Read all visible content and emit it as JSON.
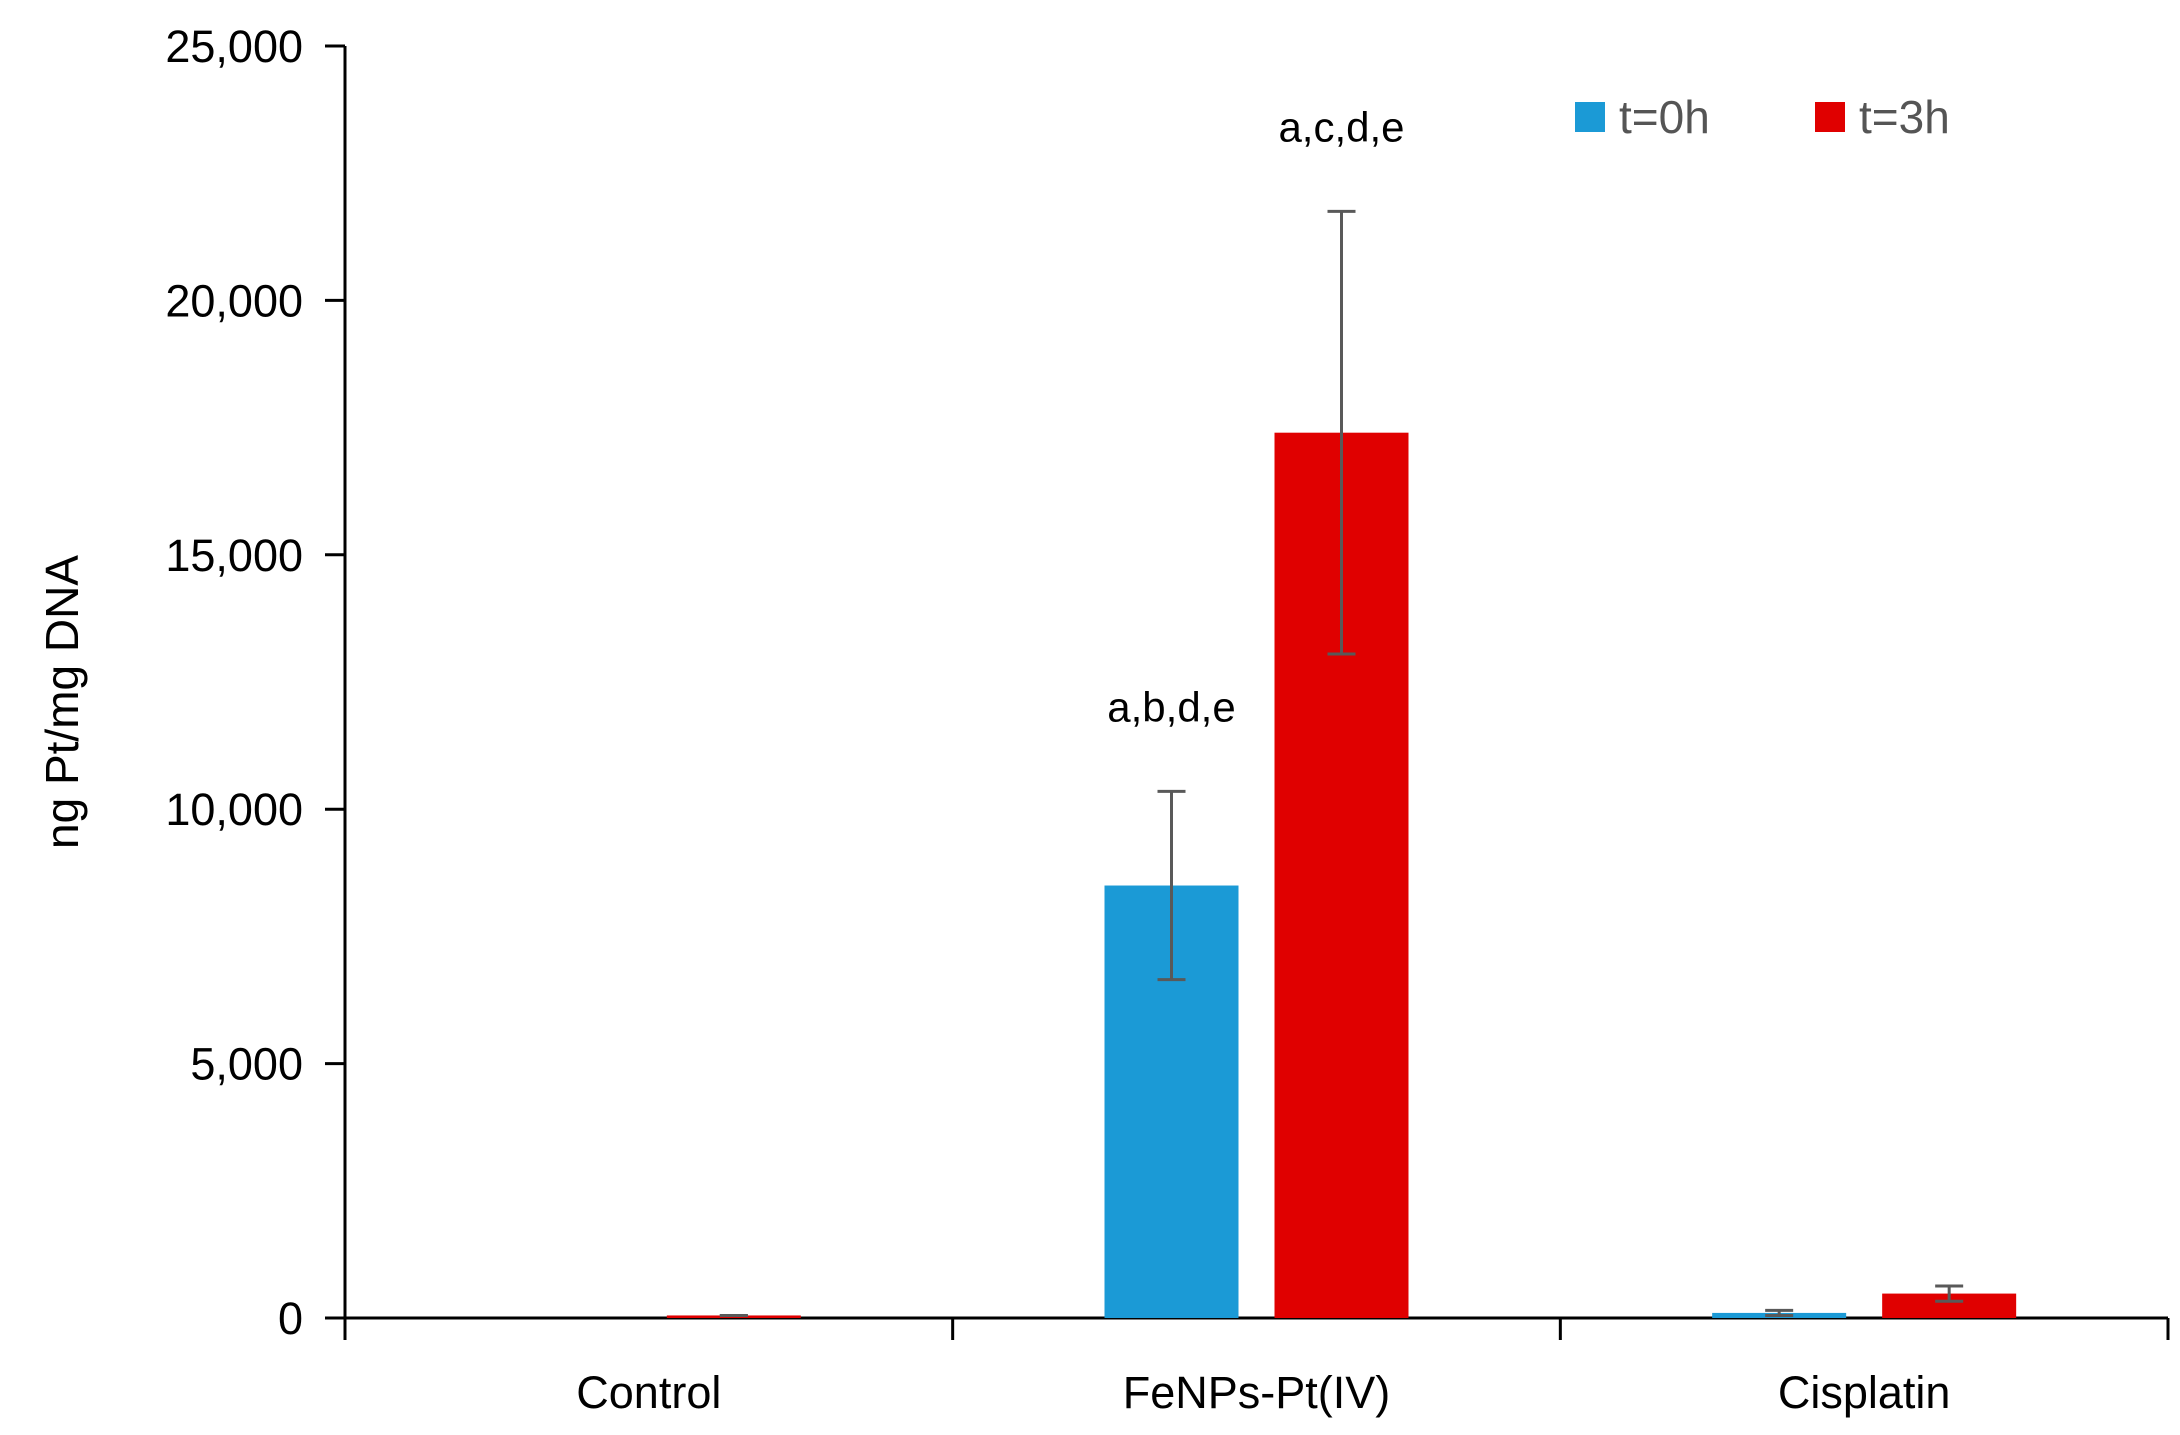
{
  "chart_data": {
    "type": "bar",
    "title": "",
    "xlabel": "",
    "ylabel": "ng Pt/mg DNA",
    "ylim": [
      0,
      25000
    ],
    "yticks": [
      0,
      5000,
      10000,
      15000,
      20000,
      25000
    ],
    "ytick_labels": [
      "0",
      "5,000",
      "10,000",
      "15,000",
      "20,000",
      "25,000"
    ],
    "categories": [
      "Control",
      "FeNPs-Pt(IV)",
      "Cisplatin"
    ],
    "series": [
      {
        "name": "t=0h",
        "color": "#1b9ad6",
        "values": [
          0,
          8500,
          100
        ],
        "errors": [
          0,
          1850,
          50
        ],
        "annotations": [
          "",
          "a,b,d,e",
          ""
        ]
      },
      {
        "name": "t=3h",
        "color": "#e00000",
        "values": [
          50,
          17400,
          480
        ],
        "errors": [
          0,
          4350,
          150
        ],
        "annotations": [
          "",
          "a,c,d,e",
          ""
        ]
      }
    ],
    "legend": {
      "position": "top-right",
      "orientation": "horizontal"
    },
    "grid": false,
    "error_bar_color": "#595959"
  }
}
